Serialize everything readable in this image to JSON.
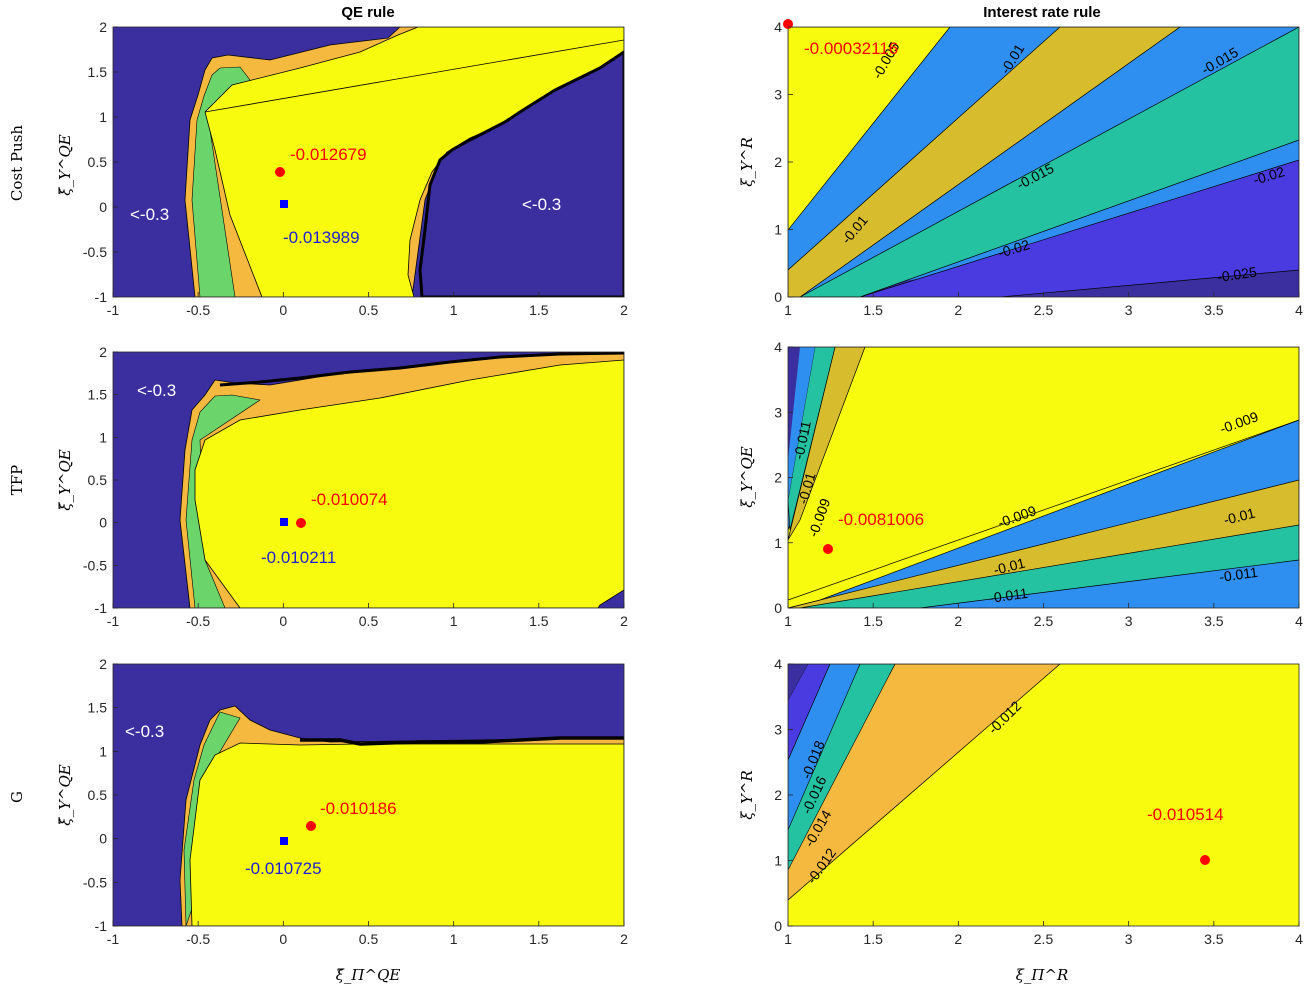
{
  "figure": {
    "column_titles": [
      "QE rule",
      "Interest rate rule"
    ],
    "row_labels": [
      "Cost Push",
      "TFP",
      "G"
    ],
    "ylabel_qe": "ξ̃_Y^QE",
    "ylabel_r": "ξ_Y^R",
    "ylabel_r_tfp": "ξ_Y^QE",
    "xlabel_qe": "ξ̃_Π^QE",
    "xlabel_r": "ξ_Π^R"
  },
  "colors": {
    "deep_blue": "#3b2fa0",
    "blue": "#4a3be0",
    "light_blue": "#2f8ff0",
    "teal": "#25c2a2",
    "green": "#6bd46b",
    "orange": "#f5b940",
    "olive": "#d7bd2e",
    "yellow": "#f9fb0e",
    "red_marker": "#ff0000",
    "blue_marker": "#0000ff"
  },
  "chart_data": [
    {
      "panel": "cost-push-qe",
      "type": "heatmap",
      "title": "QE rule",
      "row_label": "Cost Push",
      "xlim": [
        -1,
        2
      ],
      "ylim": [
        -1,
        2
      ],
      "xticks": [
        "-1",
        "-0.5",
        "0",
        "0.5",
        "1",
        "1.5",
        "2"
      ],
      "yticks": [
        "-1",
        "-0.5",
        "0",
        "0.5",
        "1",
        "1.5",
        "2"
      ],
      "ylabel": "ξ̃_Y^QE",
      "annotations": [
        "<-0.3",
        "<-0.3"
      ],
      "optimum": {
        "x": -0.02,
        "y": 0.36,
        "label": "-0.012679"
      },
      "baseline": {
        "x": 0.0,
        "y": 0.0,
        "label": "-0.013989"
      }
    },
    {
      "panel": "cost-push-r",
      "type": "heatmap",
      "title": "Interest rate rule",
      "xlim": [
        1,
        4
      ],
      "ylim": [
        0,
        4
      ],
      "xticks": [
        "1",
        "1.5",
        "2",
        "2.5",
        "3",
        "3.5",
        "4"
      ],
      "yticks": [
        "0",
        "1",
        "2",
        "3",
        "4"
      ],
      "ylabel": "ξ_Y^R",
      "contour_labels": [
        "-0.005",
        "-0.01",
        "-0.015",
        "-0.01",
        "-0.015",
        "-0.02",
        "-0.02",
        "-0.025"
      ],
      "optimum": {
        "x": 1.0,
        "y": 4.0,
        "label": "-0.00032116"
      }
    },
    {
      "panel": "tfp-qe",
      "type": "heatmap",
      "row_label": "TFP",
      "xlim": [
        -1,
        2
      ],
      "ylim": [
        -1,
        2
      ],
      "xticks": [
        "-1",
        "-0.5",
        "0",
        "0.5",
        "1",
        "1.5",
        "2"
      ],
      "yticks": [
        "-1",
        "-0.5",
        "0",
        "0.5",
        "1",
        "1.5",
        "2"
      ],
      "ylabel": "ξ̃_Y^QE",
      "annotations": [
        "<-0.3"
      ],
      "optimum": {
        "x": 0.1,
        "y": 0.0,
        "label": "-0.010074"
      },
      "baseline": {
        "x": 0.0,
        "y": 0.0,
        "label": "-0.010211"
      }
    },
    {
      "panel": "tfp-r",
      "type": "heatmap",
      "xlim": [
        1,
        4
      ],
      "ylim": [
        0,
        4
      ],
      "xticks": [
        "1",
        "1.5",
        "2",
        "2.5",
        "3",
        "3.5",
        "4"
      ],
      "yticks": [
        "0",
        "1",
        "2",
        "3",
        "4"
      ],
      "ylabel": "ξ_Y^QE",
      "contour_labels": [
        "-0.011",
        "-0.01",
        "-0.009",
        "-0.009",
        "-0.009",
        "-0.01",
        "-0.01",
        "-0.011",
        "-0.011"
      ],
      "optimum": {
        "x": 1.24,
        "y": 0.9,
        "label": "-0.0081006"
      }
    },
    {
      "panel": "g-qe",
      "type": "heatmap",
      "row_label": "G",
      "xlim": [
        -1,
        2
      ],
      "ylim": [
        -1,
        2
      ],
      "xticks": [
        "-1",
        "-0.5",
        "0",
        "0.5",
        "1",
        "1.5",
        "2"
      ],
      "yticks": [
        "-1",
        "-0.5",
        "0",
        "0.5",
        "1",
        "1.5",
        "2"
      ],
      "ylabel": "ξ̃_Y^QE",
      "xlabel": "ξ̃_Π^QE",
      "annotations": [
        "<-0.3"
      ],
      "optimum": {
        "x": 0.16,
        "y": 0.17,
        "label": "-0.010186"
      },
      "baseline": {
        "x": 0.0,
        "y": 0.0,
        "label": "-0.010725"
      }
    },
    {
      "panel": "g-r",
      "type": "heatmap",
      "xlim": [
        1,
        4
      ],
      "ylim": [
        0,
        4
      ],
      "xticks": [
        "1",
        "1.5",
        "2",
        "2.5",
        "3",
        "3.5",
        "4"
      ],
      "yticks": [
        "0",
        "1",
        "2",
        "3",
        "4"
      ],
      "ylabel": "ξ_Y^R",
      "xlabel": "ξ_Π^R",
      "contour_labels": [
        "-0.018",
        "-0.016",
        "-0.014",
        "-0.012",
        "-0.012"
      ],
      "optimum": {
        "x": 3.45,
        "y": 1.07,
        "label": "-0.010514"
      }
    }
  ]
}
